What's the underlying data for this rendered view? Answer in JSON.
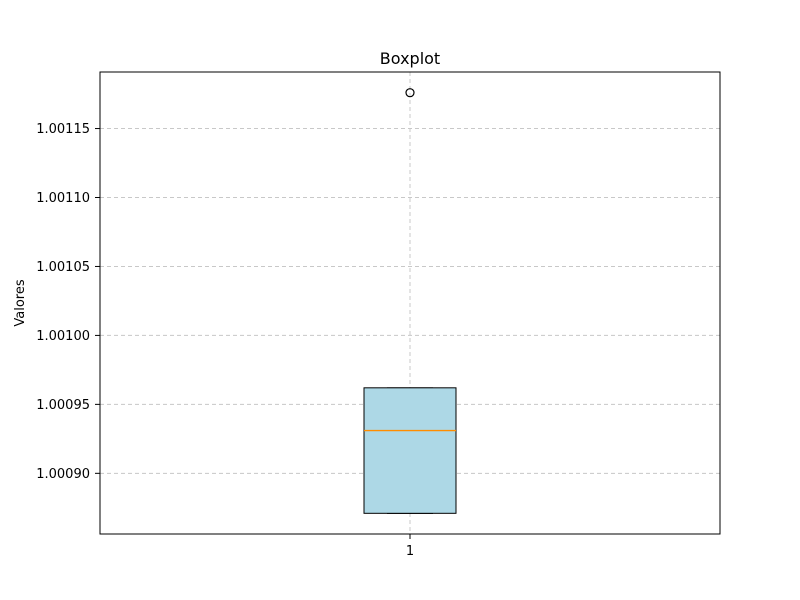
{
  "chart_data": {
    "type": "boxplot",
    "title": "Boxplot",
    "xlabel": "",
    "ylabel": "Valores",
    "categories": [
      "1"
    ],
    "series": [
      {
        "category": "1",
        "whisker_low": 1.000871,
        "q1": 1.000871,
        "median": 1.000931,
        "q3": 1.000962,
        "whisker_high": 1.000962,
        "outliers": [
          1.001176
        ]
      }
    ],
    "ylim": [
      1.000856,
      1.001191
    ],
    "yticks": [
      1.0009,
      1.00095,
      1.001,
      1.00105,
      1.0011,
      1.00115
    ],
    "ytick_labels": [
      "1.00090",
      "1.00095",
      "1.00100",
      "1.00105",
      "1.00110",
      "1.00115"
    ],
    "grid": true,
    "colors": {
      "box_fill": "#add8e6",
      "box_edge": "#000000",
      "median": "#ff8c00",
      "grid": "#c8c8c8"
    }
  }
}
